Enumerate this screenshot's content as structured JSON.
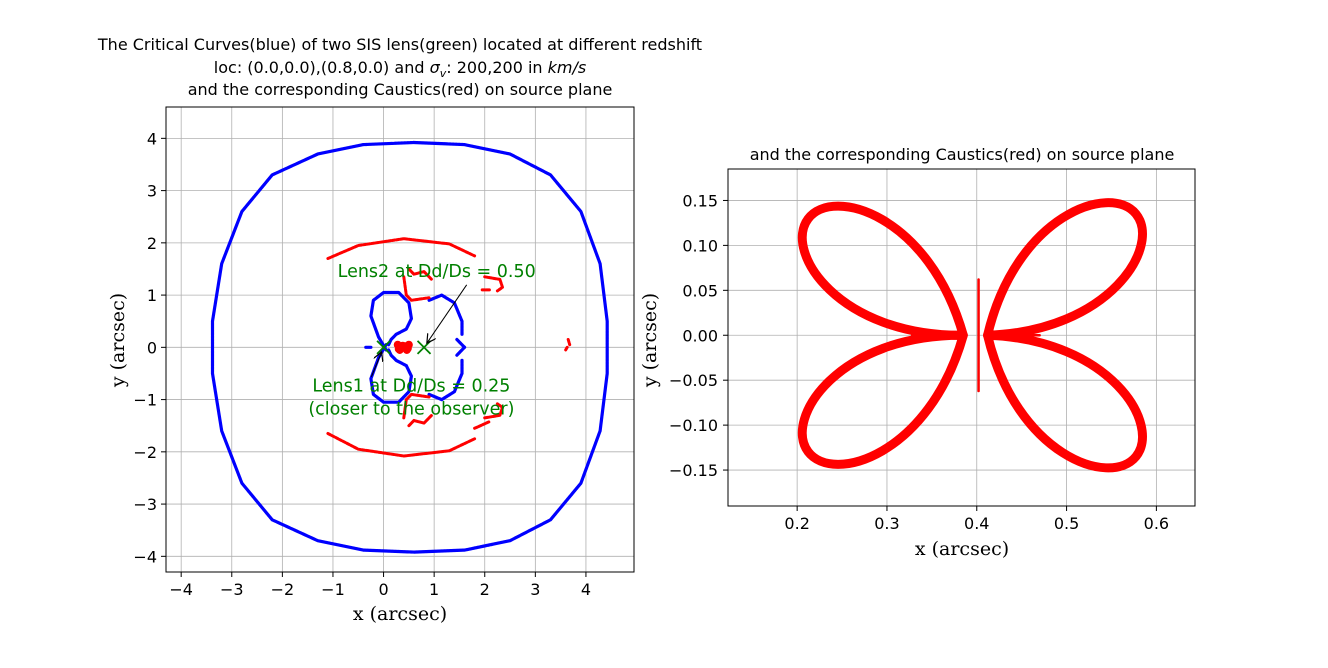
{
  "chart_data": [
    {
      "type": "scatter",
      "title": {
        "line1": "The Critical Curves(blue) of two SIS lens(green) located at different redshift",
        "line2_prefix": "loc: (0.0,0.0),(0.8,0.0) and ",
        "line2_sigma": "σ",
        "line2_sub": "v",
        "line2_mid": ": 200,200 in ",
        "line2_unit": "km/s",
        "line3": "and the corresponding Caustics(red) on source plane"
      },
      "xlabel": "x (arcsec)",
      "ylabel": "y (arcsec)",
      "xlim": [
        -4.3,
        4.95
      ],
      "ylim": [
        -4.3,
        4.6
      ],
      "xticks": [
        -4,
        -3,
        -2,
        -1,
        0,
        1,
        2,
        3,
        4
      ],
      "yticks": [
        -4,
        -3,
        -2,
        -1,
        0,
        1,
        2,
        3,
        4
      ],
      "xticklabels": [
        "−4",
        "−3",
        "−2",
        "−1",
        "0",
        "1",
        "2",
        "3",
        "4"
      ],
      "yticklabels": [
        "−4",
        "−3",
        "−2",
        "−1",
        "0",
        "1",
        "2",
        "3",
        "4"
      ],
      "grid": true,
      "series": [
        {
          "role": "critical curves",
          "color": "#0000ff",
          "curves": [
            [
              [
                0.6,
                3.92
              ],
              [
                1.6,
                3.88
              ],
              [
                2.5,
                3.7
              ],
              [
                3.3,
                3.3
              ],
              [
                3.9,
                2.6
              ],
              [
                4.28,
                1.6
              ],
              [
                4.42,
                0.5
              ],
              [
                4.42,
                -0.5
              ],
              [
                4.28,
                -1.6
              ],
              [
                3.9,
                -2.6
              ],
              [
                3.3,
                -3.3
              ],
              [
                2.5,
                -3.7
              ],
              [
                1.6,
                -3.88
              ],
              [
                0.6,
                -3.92
              ],
              [
                -0.4,
                -3.88
              ],
              [
                -1.3,
                -3.7
              ],
              [
                -2.2,
                -3.3
              ],
              [
                -2.8,
                -2.6
              ],
              [
                -3.2,
                -1.6
              ],
              [
                -3.38,
                -0.5
              ],
              [
                -3.38,
                0.5
              ],
              [
                -3.2,
                1.6
              ],
              [
                -2.8,
                2.6
              ],
              [
                -2.2,
                3.3
              ],
              [
                -1.3,
                3.7
              ],
              [
                -0.4,
                3.88
              ],
              [
                0.6,
                3.92
              ]
            ],
            [
              [
                0.05,
                -0.05
              ],
              [
                -0.1,
                0.2
              ],
              [
                -0.25,
                0.6
              ],
              [
                -0.2,
                0.9
              ],
              [
                0.0,
                1.05
              ],
              [
                0.3,
                1.05
              ],
              [
                0.5,
                0.85
              ],
              [
                0.55,
                0.55
              ],
              [
                0.45,
                0.35
              ],
              [
                0.25,
                0.25
              ],
              [
                0.15,
                0.15
              ],
              [
                0.1,
                0.05
              ]
            ],
            [
              [
                0.05,
                0.05
              ],
              [
                -0.1,
                -0.2
              ],
              [
                -0.25,
                -0.6
              ],
              [
                -0.2,
                -0.9
              ],
              [
                0.0,
                -1.05
              ],
              [
                0.3,
                -1.05
              ],
              [
                0.5,
                -0.85
              ],
              [
                0.55,
                -0.55
              ],
              [
                0.45,
                -0.35
              ],
              [
                0.25,
                -0.25
              ],
              [
                0.15,
                -0.15
              ],
              [
                0.1,
                -0.05
              ]
            ],
            [
              [
                0.9,
                0.9
              ],
              [
                1.15,
                1.0
              ],
              [
                1.4,
                0.85
              ],
              [
                1.55,
                0.5
              ],
              [
                1.55,
                0.25
              ]
            ],
            [
              [
                0.9,
                -0.9
              ],
              [
                1.15,
                -1.0
              ],
              [
                1.4,
                -0.85
              ],
              [
                1.55,
                -0.5
              ],
              [
                1.55,
                -0.25
              ]
            ],
            [
              [
                1.45,
                0.15
              ],
              [
                1.6,
                0.0
              ]
            ],
            [
              [
                1.45,
                -0.15
              ],
              [
                1.6,
                -0.0
              ]
            ],
            [
              [
                -0.35,
                0.0
              ],
              [
                -0.25,
                0.0
              ]
            ]
          ]
        },
        {
          "role": "caustics",
          "color": "#ff0000",
          "curves": [
            [
              [
                -1.1,
                1.7
              ],
              [
                -0.5,
                1.95
              ],
              [
                0.4,
                2.08
              ],
              [
                1.3,
                1.98
              ],
              [
                1.8,
                1.75
              ]
            ],
            [
              [
                -1.1,
                -1.65
              ],
              [
                -0.5,
                -1.95
              ],
              [
                0.4,
                -2.08
              ],
              [
                1.3,
                -1.98
              ],
              [
                1.8,
                -1.75
              ]
            ],
            [
              [
                0.5,
                1.5
              ],
              [
                0.6,
                1.4
              ],
              [
                0.8,
                1.45
              ],
              [
                0.95,
                1.3
              ]
            ],
            [
              [
                0.5,
                -1.5
              ],
              [
                0.6,
                -1.4
              ],
              [
                0.8,
                -1.45
              ],
              [
                0.95,
                -1.3
              ]
            ],
            [
              [
                0.4,
                1.35
              ],
              [
                0.45,
                1.0
              ],
              [
                0.55,
                0.9
              ],
              [
                0.9,
                0.95
              ]
            ],
            [
              [
                0.4,
                -1.35
              ],
              [
                0.45,
                -1.0
              ],
              [
                0.55,
                -0.9
              ],
              [
                0.9,
                -0.95
              ]
            ],
            [
              [
                2.0,
                1.35
              ],
              [
                2.3,
                1.3
              ],
              [
                2.35,
                1.15
              ],
              [
                2.25,
                1.08
              ]
            ],
            [
              [
                2.0,
                -1.35
              ],
              [
                2.3,
                -1.3
              ],
              [
                2.35,
                -1.15
              ],
              [
                2.25,
                -1.08
              ]
            ],
            [
              [
                1.95,
                1.1
              ],
              [
                2.1,
                1.1
              ]
            ],
            [
              [
                1.8,
                -1.55
              ],
              [
                2.1,
                -1.42
              ]
            ],
            [
              [
                3.65,
                0.15
              ],
              [
                3.68,
                0.05
              ]
            ],
            [
              [
                3.6,
                -0.05
              ],
              [
                3.63,
                -0.0
              ]
            ]
          ],
          "blobs": [
            [
              0.28,
              0.05
            ],
            [
              0.32,
              -0.05
            ],
            [
              0.35,
              0.02
            ],
            [
              0.3,
              -0.03
            ],
            [
              0.5,
              0.05
            ],
            [
              0.46,
              -0.05
            ],
            [
              0.43,
              0.02
            ],
            [
              0.48,
              -0.02
            ],
            [
              0.4,
              0.0
            ],
            [
              0.38,
              0.03
            ]
          ]
        },
        {
          "role": "lenses",
          "color": "#008000",
          "points": [
            [
              0.0,
              0.0
            ],
            [
              0.8,
              0.0
            ]
          ]
        }
      ],
      "annotations": [
        {
          "text": "Lens2 at Dd/Ds = 0.50",
          "xy": [
            0.8,
            0.0
          ],
          "xytext": [
            1.05,
            1.35
          ]
        },
        {
          "text": "Lens1 at Dd/Ds = 0.25",
          "text2": "(closer to the observer)",
          "xy": [
            0.0,
            0.0
          ],
          "xytext": [
            0.55,
            -0.85
          ]
        }
      ]
    },
    {
      "type": "scatter",
      "title": "and the corresponding Caustics(red) on source plane",
      "xlabel": "x (arcsec)",
      "ylabel": "y (arcsec)",
      "xlim": [
        0.123,
        0.643
      ],
      "ylim": [
        -0.19,
        0.185
      ],
      "xticks": [
        0.2,
        0.3,
        0.4,
        0.5,
        0.6
      ],
      "yticks": [
        -0.15,
        -0.1,
        -0.05,
        0.0,
        0.05,
        0.1,
        0.15
      ],
      "xticklabels": [
        "0.2",
        "0.3",
        "0.4",
        "0.5",
        "0.6"
      ],
      "yticklabels": [
        "−0.15",
        "−0.10",
        "−0.05",
        "0.00",
        "0.05",
        "0.10",
        "0.15"
      ],
      "grid": true,
      "series": [
        {
          "role": "caustics",
          "color": "#ff0000",
          "lobes": [
            {
              "near": [
                0.385,
                0.0
              ],
              "far": [
                0.225,
                0.12
              ]
            },
            {
              "near": [
                0.385,
                0.0
              ],
              "far": [
                0.225,
                -0.12
              ]
            },
            {
              "near": [
                0.412,
                0.0
              ],
              "far": [
                0.565,
                0.125
              ]
            },
            {
              "near": [
                0.412,
                0.0
              ],
              "far": [
                0.565,
                -0.125
              ]
            }
          ],
          "cusps": [
            [
              [
                0.36,
                0.0
              ],
              [
                0.328,
                0.0
              ]
            ],
            [
              [
                0.44,
                0.0
              ],
              [
                0.47,
                0.0
              ]
            ],
            [
              [
                0.402,
                0.062
              ],
              [
                0.402,
                -0.062
              ]
            ]
          ]
        }
      ]
    }
  ]
}
